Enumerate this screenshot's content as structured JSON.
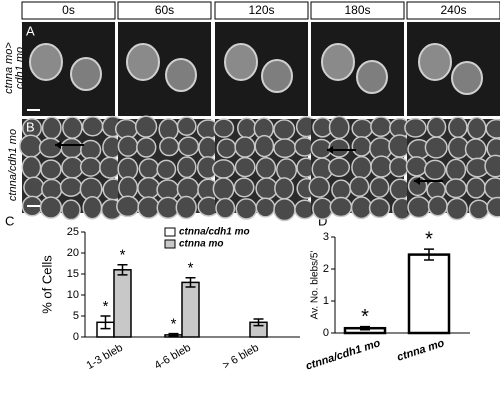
{
  "figure": {
    "time_labels": [
      "0s",
      "60s",
      "120s",
      "180s",
      "240s"
    ],
    "panel_labels": [
      "A",
      "B",
      "C",
      "D"
    ],
    "row_labels": [
      [
        "ctnna mo>",
        "cdh1 mo"
      ],
      [
        "ctnna/cdh1 mo"
      ]
    ]
  },
  "chart_data": [
    {
      "type": "bar",
      "ylabel": "% of Cells",
      "categories": [
        "1-3 bleb",
        "4-6 bleb",
        "> 6 bleb"
      ],
      "series": [
        {
          "name": "ctnna/cdh1 mo",
          "color": "#ffffff",
          "values": [
            3.5,
            0.5,
            null
          ],
          "errors": [
            1.5,
            0.3,
            null
          ],
          "annotations": [
            "*",
            "*",
            null
          ]
        },
        {
          "name": "ctnna mo",
          "color": "#c8c8c8",
          "values": [
            16,
            13,
            3.5
          ],
          "errors": [
            1.2,
            1.1,
            0.8
          ],
          "annotations": [
            "*",
            "*",
            null
          ]
        }
      ],
      "ylim": [
        0,
        25
      ],
      "yticks": [
        0,
        5,
        10,
        15,
        20,
        25
      ],
      "legend": "top-right"
    },
    {
      "type": "bar",
      "ylabel": "Av. No. blebs/5'",
      "categories": [
        "ctnna/cdh1 mo",
        "ctnna mo"
      ],
      "series": [
        {
          "color": "#ffffff",
          "values": [
            0.15,
            2.45
          ],
          "errors": [
            0.05,
            0.17
          ],
          "annotations": [
            "*",
            "*"
          ]
        }
      ],
      "ylim": [
        0,
        3
      ],
      "yticks": [
        0,
        1,
        2,
        3
      ]
    }
  ]
}
